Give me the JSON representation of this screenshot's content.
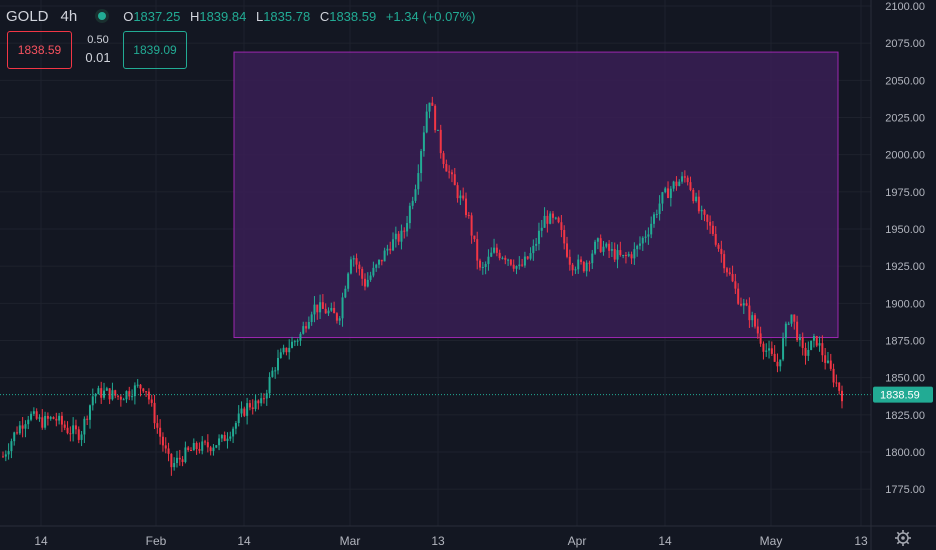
{
  "header": {
    "symbol": "GOLD",
    "timeframe": "4h",
    "o_key": "O",
    "o_val": "1837.25",
    "h_key": "H",
    "h_val": "1839.84",
    "l_key": "L",
    "l_val": "1835.78",
    "c_key": "C",
    "c_val": "1838.59",
    "change": "+1.34 (+0.07%)"
  },
  "trade": {
    "sell_price": "1838.59",
    "spread": "0.50",
    "quantity": "0.01",
    "buy_price": "1839.09"
  },
  "colors": {
    "up": "#22ab94",
    "down": "#f23645",
    "rect_fill": "#3a1f55",
    "rect_stroke": "#9c27b0",
    "bg": "#131722"
  },
  "icons": {
    "settings": "gear-icon",
    "live_status": "status-dot-icon"
  },
  "chart_data": {
    "type": "candlestick",
    "symbol": "GOLD",
    "interval": "4h",
    "y_ticks": [
      "2100.00",
      "2075.00",
      "2050.00",
      "2025.00",
      "2000.00",
      "1975.00",
      "1950.00",
      "1925.00",
      "1900.00",
      "1875.00",
      "1850.00",
      "1825.00",
      "1800.00",
      "1775.00"
    ],
    "ylim": [
      1765,
      2102
    ],
    "x_ticks": [
      "14",
      "Feb",
      "14",
      "Mar",
      "13",
      "Apr",
      "14",
      "May",
      "13"
    ],
    "last_price": "1838.59",
    "last_price_value": 1838.59,
    "series": [
      {
        "x": "Jan 07",
        "y": 1797
      },
      {
        "x": "Jan 09",
        "y": 1814
      },
      {
        "x": "Jan 11",
        "y": 1825
      },
      {
        "x": "Jan 13",
        "y": 1820
      },
      {
        "x": "Jan 15",
        "y": 1823
      },
      {
        "x": "Jan 17",
        "y": 1815
      },
      {
        "x": "Jan 19",
        "y": 1812
      },
      {
        "x": "Jan 21",
        "y": 1839
      },
      {
        "x": "Jan 23",
        "y": 1840
      },
      {
        "x": "Jan 25",
        "y": 1837
      },
      {
        "x": "Jan 27",
        "y": 1842
      },
      {
        "x": "Jan 29",
        "y": 1845
      },
      {
        "x": "Jan 31",
        "y": 1815
      },
      {
        "x": "Feb 02",
        "y": 1790
      },
      {
        "x": "Feb 04",
        "y": 1798
      },
      {
        "x": "Feb 06",
        "y": 1803
      },
      {
        "x": "Feb 08",
        "y": 1804
      },
      {
        "x": "Feb 10",
        "y": 1808
      },
      {
        "x": "Feb 12",
        "y": 1819
      },
      {
        "x": "Feb 14",
        "y": 1832
      },
      {
        "x": "Feb 16",
        "y": 1832
      },
      {
        "x": "Feb 18",
        "y": 1857
      },
      {
        "x": "Feb 20",
        "y": 1870
      },
      {
        "x": "Feb 22",
        "y": 1878
      },
      {
        "x": "Feb 24",
        "y": 1898
      },
      {
        "x": "Feb 26",
        "y": 1895
      },
      {
        "x": "Feb 28",
        "y": 1890
      },
      {
        "x": "Mar 01",
        "y": 1935
      },
      {
        "x": "Mar 03",
        "y": 1913
      },
      {
        "x": "Mar 05",
        "y": 1925
      },
      {
        "x": "Mar 07",
        "y": 1940
      },
      {
        "x": "Mar 09",
        "y": 1946
      },
      {
        "x": "Mar 11",
        "y": 1982
      },
      {
        "x": "Mar 13",
        "y": 2040
      },
      {
        "x": "Mar 15",
        "y": 2000
      },
      {
        "x": "Mar 17",
        "y": 1978
      },
      {
        "x": "Mar 19",
        "y": 1960
      },
      {
        "x": "Mar 21",
        "y": 1920
      },
      {
        "x": "Mar 23",
        "y": 1935
      },
      {
        "x": "Mar 25",
        "y": 1932
      },
      {
        "x": "Mar 27",
        "y": 1923
      },
      {
        "x": "Mar 29",
        "y": 1934
      },
      {
        "x": "Mar 31",
        "y": 1958
      },
      {
        "x": "Apr 02",
        "y": 1953
      },
      {
        "x": "Apr 04",
        "y": 1927
      },
      {
        "x": "Apr 06",
        "y": 1925
      },
      {
        "x": "Apr 08",
        "y": 1940
      },
      {
        "x": "Apr 10",
        "y": 1935
      },
      {
        "x": "Apr 12",
        "y": 1930
      },
      {
        "x": "Apr 14",
        "y": 1935
      },
      {
        "x": "Apr 16",
        "y": 1950
      },
      {
        "x": "Apr 18",
        "y": 1970
      },
      {
        "x": "Apr 20",
        "y": 1980
      },
      {
        "x": "Apr 22",
        "y": 1985
      },
      {
        "x": "Apr 24",
        "y": 1960
      },
      {
        "x": "Apr 26",
        "y": 1948
      },
      {
        "x": "Apr 28",
        "y": 1925
      },
      {
        "x": "Apr 30",
        "y": 1903
      },
      {
        "x": "May 02",
        "y": 1890
      },
      {
        "x": "May 04",
        "y": 1870
      },
      {
        "x": "May 06",
        "y": 1858
      },
      {
        "x": "May 08",
        "y": 1895
      },
      {
        "x": "May 10",
        "y": 1865
      },
      {
        "x": "May 12",
        "y": 1876
      },
      {
        "x": "May 14",
        "y": 1856
      },
      {
        "x": "May 16",
        "y": 1838.59
      }
    ],
    "rectangle": {
      "y_top": 2069,
      "y_bottom": 1877
    }
  }
}
